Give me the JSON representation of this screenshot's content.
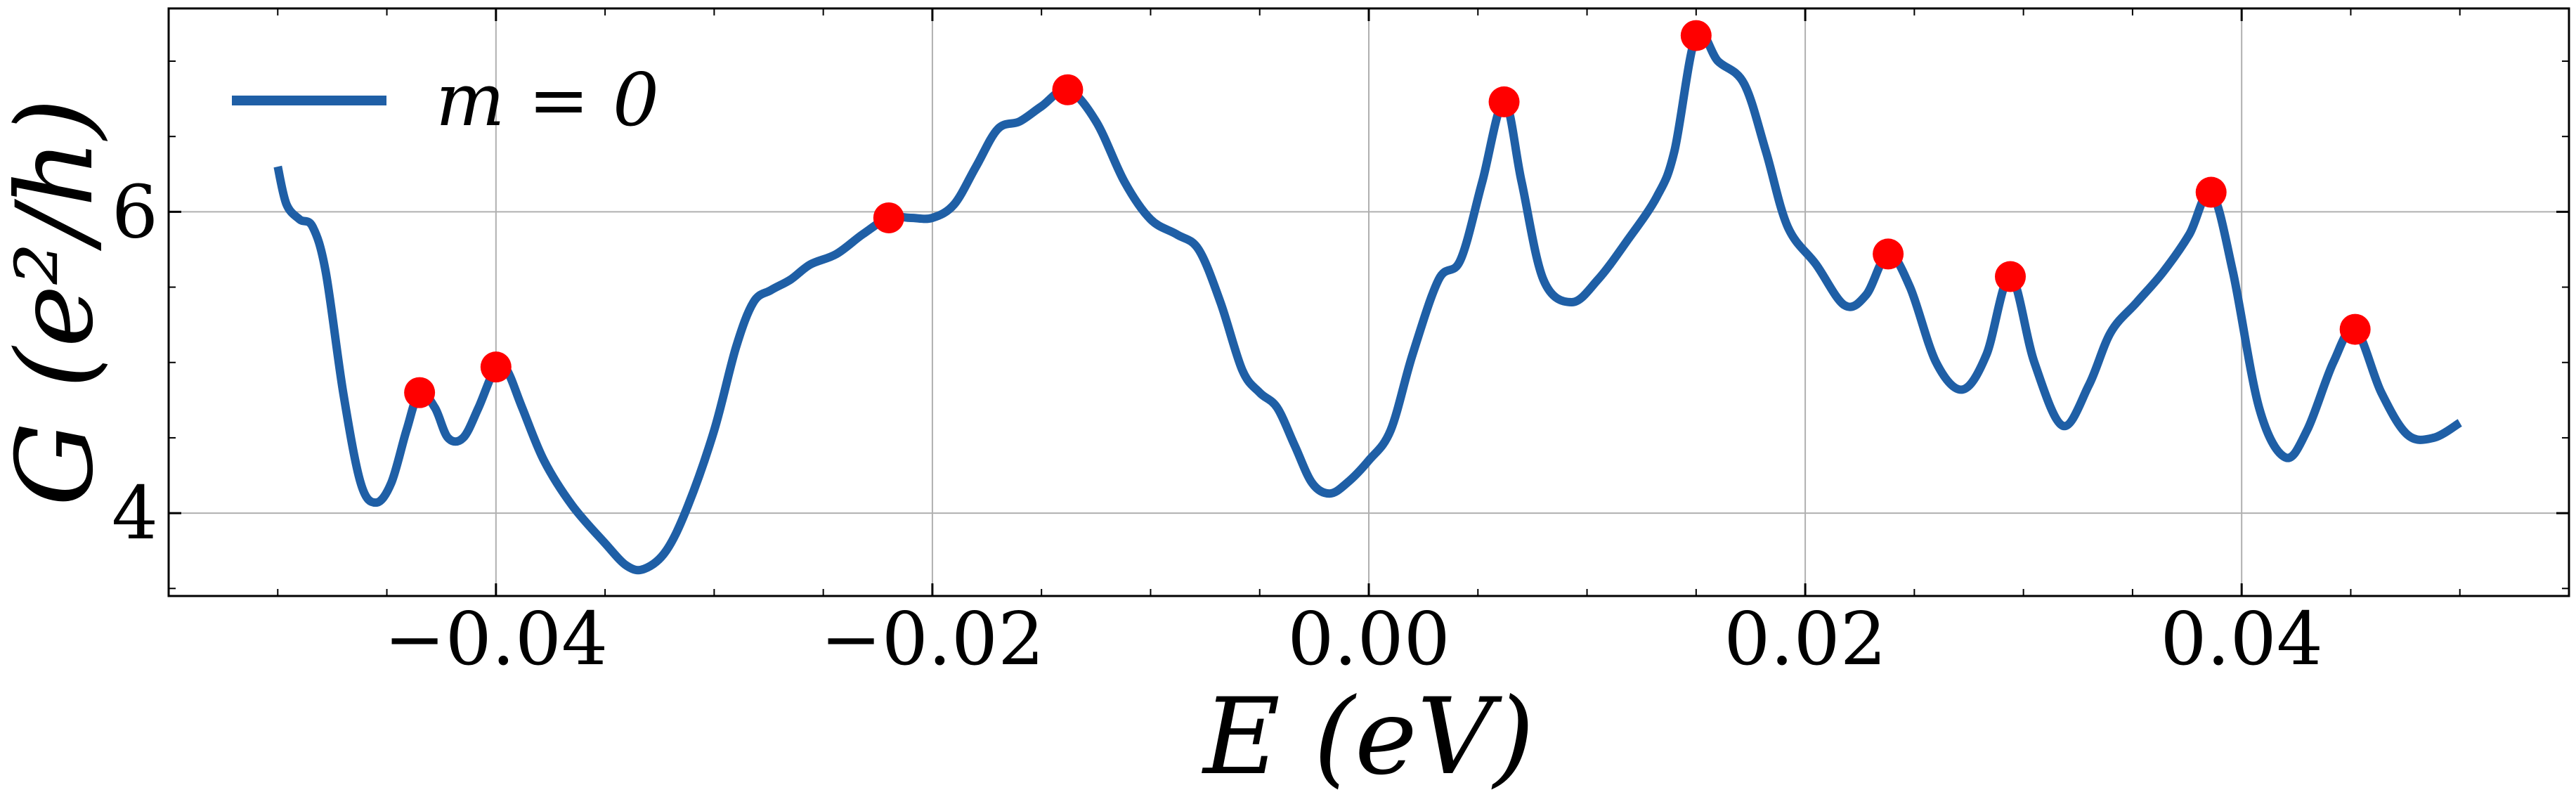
{
  "chart_data": {
    "type": "line",
    "title": "",
    "xlabel": "E (eV)",
    "ylabel": "G (e²/h)",
    "xlim": [
      -0.055,
      0.055
    ],
    "ylim": [
      3.45,
      7.35
    ],
    "grid": true,
    "legend": {
      "placement": "top-left",
      "entries": [
        {
          "label": "m = 0",
          "color": "#1f5fa6"
        }
      ]
    },
    "x_ticks": [
      {
        "value": -0.04,
        "label": "−0.04"
      },
      {
        "value": -0.02,
        "label": "−0.02"
      },
      {
        "value": 0.0,
        "label": "0.00"
      },
      {
        "value": 0.02,
        "label": "0.02"
      },
      {
        "value": 0.04,
        "label": "0.04"
      }
    ],
    "y_ticks": [
      {
        "value": 4,
        "label": "4"
      },
      {
        "value": 6,
        "label": "6"
      }
    ],
    "series": [
      {
        "name": "m = 0",
        "color": "#1f5fa6",
        "points": [
          [
            -0.05,
            6.3
          ],
          [
            -0.0496,
            6.05
          ],
          [
            -0.049,
            5.95
          ],
          [
            -0.0484,
            5.9
          ],
          [
            -0.0478,
            5.6
          ],
          [
            -0.047,
            4.8
          ],
          [
            -0.0462,
            4.2
          ],
          [
            -0.0455,
            4.07
          ],
          [
            -0.0448,
            4.2
          ],
          [
            -0.0441,
            4.55
          ],
          [
            -0.0435,
            4.8
          ],
          [
            -0.0428,
            4.7
          ],
          [
            -0.0422,
            4.5
          ],
          [
            -0.0415,
            4.5
          ],
          [
            -0.0408,
            4.7
          ],
          [
            -0.04,
            4.97
          ],
          [
            -0.0395,
            4.95
          ],
          [
            -0.0388,
            4.7
          ],
          [
            -0.0378,
            4.35
          ],
          [
            -0.0365,
            4.05
          ],
          [
            -0.035,
            3.8
          ],
          [
            -0.034,
            3.65
          ],
          [
            -0.0332,
            3.63
          ],
          [
            -0.0322,
            3.75
          ],
          [
            -0.0312,
            4.05
          ],
          [
            -0.03,
            4.55
          ],
          [
            -0.029,
            5.1
          ],
          [
            -0.0282,
            5.4
          ],
          [
            -0.0274,
            5.48
          ],
          [
            -0.0265,
            5.55
          ],
          [
            -0.0256,
            5.65
          ],
          [
            -0.0244,
            5.72
          ],
          [
            -0.0232,
            5.85
          ],
          [
            -0.022,
            5.96
          ],
          [
            -0.021,
            5.96
          ],
          [
            -0.02,
            5.96
          ],
          [
            -0.019,
            6.05
          ],
          [
            -0.018,
            6.3
          ],
          [
            -0.017,
            6.55
          ],
          [
            -0.016,
            6.6
          ],
          [
            -0.015,
            6.7
          ],
          [
            -0.0138,
            6.81
          ],
          [
            -0.0125,
            6.6
          ],
          [
            -0.0112,
            6.2
          ],
          [
            -0.01,
            5.95
          ],
          [
            -0.0088,
            5.85
          ],
          [
            -0.0078,
            5.75
          ],
          [
            -0.0068,
            5.4
          ],
          [
            -0.0058,
            4.95
          ],
          [
            -0.005,
            4.8
          ],
          [
            -0.0042,
            4.7
          ],
          [
            -0.0034,
            4.45
          ],
          [
            -0.0026,
            4.2
          ],
          [
            -0.0018,
            4.13
          ],
          [
            -0.001,
            4.2
          ],
          [
            0.0,
            4.35
          ],
          [
            0.001,
            4.55
          ],
          [
            0.002,
            5.05
          ],
          [
            0.0032,
            5.55
          ],
          [
            0.0042,
            5.68
          ],
          [
            0.0052,
            6.2
          ],
          [
            0.0062,
            6.73
          ],
          [
            0.007,
            6.2
          ],
          [
            0.008,
            5.55
          ],
          [
            0.0093,
            5.4
          ],
          [
            0.0105,
            5.55
          ],
          [
            0.0118,
            5.8
          ],
          [
            0.0132,
            6.1
          ],
          [
            0.014,
            6.4
          ],
          [
            0.015,
            7.17
          ],
          [
            0.016,
            7.0
          ],
          [
            0.0172,
            6.85
          ],
          [
            0.0182,
            6.4
          ],
          [
            0.0192,
            5.9
          ],
          [
            0.0205,
            5.65
          ],
          [
            0.0218,
            5.38
          ],
          [
            0.0228,
            5.45
          ],
          [
            0.0238,
            5.72
          ],
          [
            0.0248,
            5.5
          ],
          [
            0.026,
            5.0
          ],
          [
            0.0272,
            4.82
          ],
          [
            0.0283,
            5.05
          ],
          [
            0.0294,
            5.57
          ],
          [
            0.0305,
            5.0
          ],
          [
            0.0318,
            4.58
          ],
          [
            0.033,
            4.85
          ],
          [
            0.034,
            5.2
          ],
          [
            0.0352,
            5.4
          ],
          [
            0.0364,
            5.6
          ],
          [
            0.0376,
            5.85
          ],
          [
            0.0386,
            6.13
          ],
          [
            0.0396,
            5.6
          ],
          [
            0.0408,
            4.7
          ],
          [
            0.042,
            4.37
          ],
          [
            0.043,
            4.55
          ],
          [
            0.0442,
            5.0
          ],
          [
            0.0452,
            5.22
          ],
          [
            0.0464,
            4.8
          ],
          [
            0.0476,
            4.52
          ],
          [
            0.0488,
            4.5
          ],
          [
            0.05,
            4.6
          ]
        ],
        "peaks": [
          [
            -0.0435,
            4.8
          ],
          [
            -0.04,
            4.97
          ],
          [
            -0.022,
            5.96
          ],
          [
            -0.0138,
            6.81
          ],
          [
            0.0062,
            6.73
          ],
          [
            0.015,
            7.17
          ],
          [
            0.0238,
            5.72
          ],
          [
            0.0294,
            5.57
          ],
          [
            0.0386,
            6.13
          ],
          [
            0.0452,
            5.22
          ]
        ],
        "peak_color": "#ff0000"
      }
    ]
  }
}
